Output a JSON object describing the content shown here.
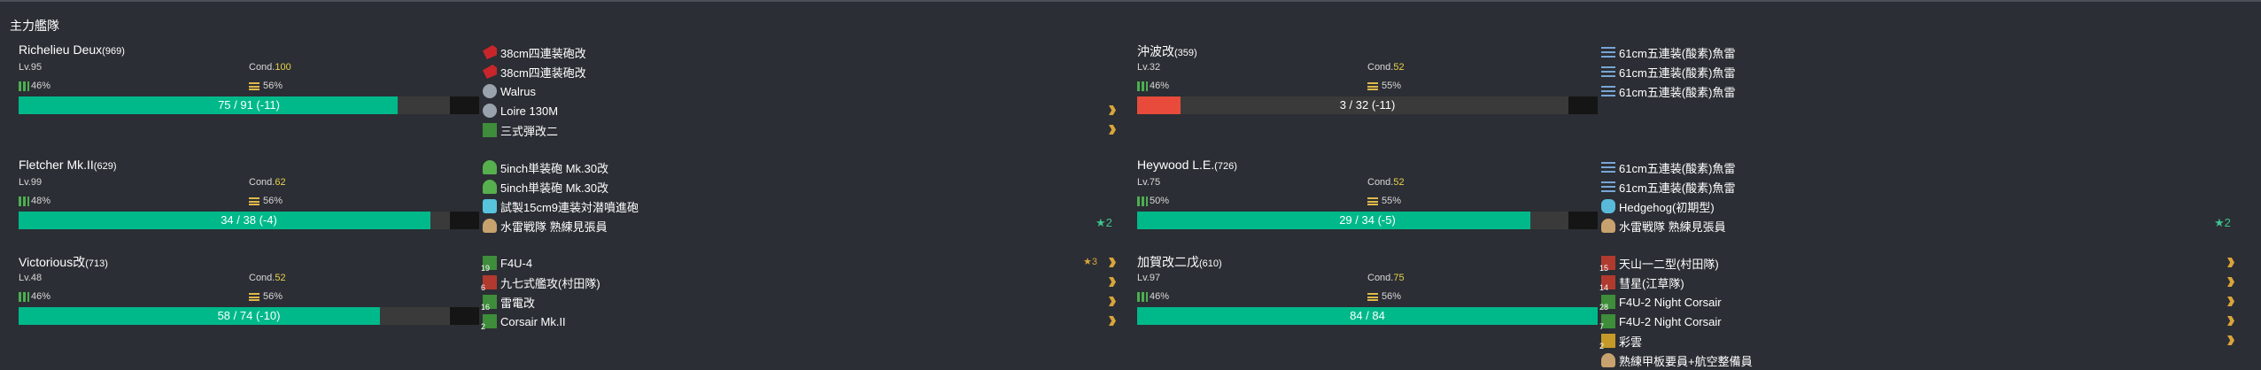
{
  "fleet": {
    "title": "主力艦隊"
  },
  "ships": [
    {
      "name": "Richelieu Deux",
      "id": "(969)",
      "lv": "Lv.95",
      "cond_label": "Cond.",
      "cond": "100",
      "fuel": "46%",
      "ammo": "56%",
      "hp": "75 / 91 (-11)",
      "hp_ratio": 0.824,
      "hp_color": "#00b98b",
      "equipment": [
        {
          "name": "38cm四連装砲改",
          "icon": "large-gun-icon",
          "mark": ""
        },
        {
          "name": "38cm四連装砲改",
          "icon": "large-gun-icon",
          "mark": ""
        },
        {
          "name": "Walrus",
          "icon": "seaplane-icon",
          "mark": ""
        },
        {
          "name": "Loire 130M",
          "icon": "seaplane-icon",
          "mark": ""
        },
        {
          "name": "三式弾改二",
          "icon": "special-shell-icon",
          "mark": ""
        }
      ],
      "ex_slot": ""
    },
    {
      "name": "沖波改",
      "id": "(359)",
      "lv": "Lv.32",
      "cond_label": "Cond.",
      "cond": "52",
      "fuel": "46%",
      "ammo": "55%",
      "hp": "3 / 32 (-11)",
      "hp_ratio": 0.094,
      "hp_color": "#e84b3c",
      "equipment": [
        {
          "name": "61cm五連装(酸素)魚雷",
          "icon": "torpedo-icon",
          "mark": ""
        },
        {
          "name": "61cm五連装(酸素)魚雷",
          "icon": "torpedo-icon",
          "mark": ""
        },
        {
          "name": "61cm五連装(酸素)魚雷",
          "icon": "torpedo-icon",
          "mark": ""
        }
      ],
      "ex_slot": ""
    },
    {
      "name": "Fletcher Mk.II",
      "id": "(629)",
      "lv": "Lv.99",
      "cond_label": "Cond.",
      "cond": "62",
      "fuel": "48%",
      "ammo": "56%",
      "hp": "34 / 38 (-4)",
      "hp_ratio": 0.895,
      "hp_color": "#00b98b",
      "equipment": [
        {
          "name": "5inch単装砲 Mk.30改",
          "icon": "small-gun-icon",
          "mark": ""
        },
        {
          "name": "5inch単装砲 Mk.30改",
          "icon": "small-gun-icon",
          "mark": ""
        },
        {
          "name": "試製15cm9連装対潜噴進砲",
          "icon": "asw-rocket-icon",
          "mark": ""
        },
        {
          "name": "水雷戦隊 熟練見張員",
          "icon": "lookout-icon",
          "mark": ""
        }
      ],
      "ex_slot": "★2"
    },
    {
      "name": "Heywood L.E.",
      "id": "(726)",
      "lv": "Lv.75",
      "cond_label": "Cond.",
      "cond": "52",
      "fuel": "50%",
      "ammo": "55%",
      "hp": "29 / 34 (-5)",
      "hp_ratio": 0.853,
      "hp_color": "#00b98b",
      "equipment": [
        {
          "name": "61cm五連装(酸素)魚雷",
          "icon": "torpedo-icon",
          "mark": ""
        },
        {
          "name": "61cm五連装(酸素)魚雷",
          "icon": "torpedo-icon",
          "mark": ""
        },
        {
          "name": "Hedgehog(初期型)",
          "icon": "asw-icon",
          "mark": ""
        },
        {
          "name": "水雷戦隊 熟練見張員",
          "icon": "lookout-icon",
          "mark": ""
        }
      ],
      "ex_slot": "★2"
    },
    {
      "name": "Victorious改",
      "id": "(713)",
      "lv": "Lv.48",
      "cond_label": "Cond.",
      "cond": "52",
      "fuel": "46%",
      "ammo": "56%",
      "hp": "58 / 74 (-10)",
      "hp_ratio": 0.784,
      "hp_color": "#00b98b",
      "equipment": [
        {
          "name": "F4U-4",
          "icon": "fighter-icon",
          "count": "19",
          "mark": "★3"
        },
        {
          "name": "九七式艦攻(村田隊)",
          "icon": "torpedo-bomber-icon",
          "count": "6",
          "mark": ""
        },
        {
          "name": "雷電改",
          "icon": "fighter-icon",
          "count": "16",
          "mark": ""
        },
        {
          "name": "Corsair Mk.II",
          "icon": "fighter-icon",
          "count": "2",
          "mark": ""
        }
      ],
      "ex_slot": ""
    },
    {
      "name": "加賀改二戊",
      "id": "(610)",
      "lv": "Lv.97",
      "cond_label": "Cond.",
      "cond": "75",
      "fuel": "46%",
      "ammo": "56%",
      "hp": "84 / 84",
      "hp_ratio": 1.0,
      "hp_color": "#00b98b",
      "equipment": [
        {
          "name": "天山一二型(村田隊)",
          "icon": "torpedo-bomber-icon",
          "count": "15",
          "mark": ""
        },
        {
          "name": "彗星(江草隊)",
          "icon": "dive-bomber-icon",
          "count": "14",
          "mark": ""
        },
        {
          "name": "F4U-2 Night Corsair",
          "icon": "night-fighter-icon",
          "count": "28",
          "mark": ""
        },
        {
          "name": "F4U-2 Night Corsair",
          "icon": "night-fighter-icon",
          "count": "7",
          "mark": ""
        },
        {
          "name": "彩雲",
          "icon": "recon-plane-icon",
          "count": "2",
          "mark": ""
        },
        {
          "name": "熟練甲板要員+航空整備員",
          "icon": "deck-crew-icon",
          "mark": ""
        }
      ],
      "ex_slot": ""
    }
  ]
}
